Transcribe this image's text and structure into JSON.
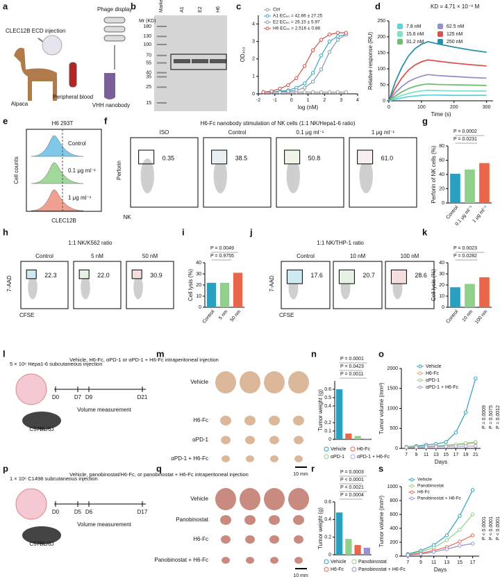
{
  "panels": {
    "a": {
      "letter": "a",
      "injection": "CLEC12B ECD injection",
      "phage": "Phage display",
      "alpaca": "Alpaca",
      "blood": "Peripheral blood",
      "nanobody": "VHH nanobody"
    },
    "b": {
      "letter": "b",
      "axis_title": "Mr (KD)",
      "lanes": [
        "Marker",
        "A1",
        "E2",
        "H6"
      ],
      "markers": [
        180,
        130,
        100,
        70,
        55,
        40,
        35,
        25,
        15
      ]
    },
    "c": {
      "letter": "c",
      "type": "line",
      "xlabel": "log (nM)",
      "ylabel": "OD₄₅₀",
      "x": [
        -1.7,
        -1.2,
        -0.7,
        -0.2,
        0.3,
        0.8,
        1.3,
        1.8,
        2.3,
        2.8,
        3.3
      ],
      "xlim": [
        -2,
        4
      ],
      "xticks": [
        -2,
        -1,
        0,
        1,
        2,
        3,
        4
      ],
      "ylim": [
        0,
        4.5
      ],
      "yticks": [
        0,
        1,
        2,
        3,
        4
      ],
      "series": [
        {
          "name": "Ctrl",
          "color": "#9a9a9a",
          "values": [
            0.1,
            0.1,
            0.1,
            0.1,
            0.1,
            0.1,
            0.1,
            0.1,
            0.1,
            0.1,
            0.1
          ]
        },
        {
          "name": "A1 EC₅₀ = 42.66 ± 27.25",
          "color": "#3ba3c4",
          "values": [
            0.1,
            0.1,
            0.15,
            0.2,
            0.35,
            0.6,
            1.2,
            2.2,
            3.0,
            3.3,
            3.4
          ]
        },
        {
          "name": "E2 EC₅₀ = 26.15 ± 5.97",
          "color": "#7f98ad",
          "values": [
            0.1,
            0.1,
            0.1,
            0.15,
            0.2,
            0.35,
            0.7,
            1.4,
            2.4,
            3.1,
            3.4
          ]
        },
        {
          "name": "H6 EC₅₀ = 2.516 ± 0.88",
          "color": "#c8524a",
          "values": [
            0.1,
            0.15,
            0.3,
            0.5,
            0.9,
            1.6,
            2.5,
            3.1,
            3.4,
            3.5,
            3.5
          ]
        }
      ]
    },
    "d": {
      "letter": "d",
      "type": "line",
      "annotation": "KD = 4.71 × 10⁻⁸ M",
      "xlabel": "Time (s)",
      "ylabel": "Relative response (RU)",
      "x": [
        0,
        20,
        40,
        60,
        80,
        100,
        120,
        150,
        200,
        250,
        300
      ],
      "xlim": [
        0,
        320
      ],
      "xticks": [
        0,
        100,
        200,
        300
      ],
      "ylim": [
        0,
        250
      ],
      "yticks": [
        0,
        50,
        100,
        150,
        200,
        250
      ],
      "series": [
        {
          "name": "7.8 nM",
          "color": "#5fd3e0",
          "values": [
            0,
            5,
            9,
            13,
            15,
            17,
            18,
            18,
            17,
            17,
            17
          ]
        },
        {
          "name": "62.5 nM",
          "color": "#9a8fc8",
          "values": [
            0,
            25,
            45,
            60,
            70,
            77,
            82,
            79,
            76,
            73,
            71
          ]
        },
        {
          "name": "15.6 nM",
          "color": "#7fe0c8",
          "values": [
            0,
            9,
            17,
            23,
            28,
            31,
            33,
            32,
            31,
            31,
            30
          ]
        },
        {
          "name": "125 nM",
          "color": "#d9534a",
          "values": [
            0,
            40,
            72,
            96,
            112,
            122,
            128,
            124,
            118,
            113,
            109
          ]
        },
        {
          "name": "31.2 nM",
          "color": "#6cbf6c",
          "values": [
            0,
            15,
            28,
            38,
            45,
            50,
            53,
            51,
            50,
            49,
            48
          ]
        },
        {
          "name": "250 nM",
          "color": "#2a8fa8",
          "values": [
            0,
            60,
            105,
            140,
            163,
            177,
            185,
            178,
            168,
            159,
            152
          ]
        }
      ]
    },
    "e": {
      "letter": "e",
      "title": "H6 293T",
      "rows": [
        "Control",
        "0.1 μg ml⁻¹",
        "1 μg ml⁻¹"
      ],
      "xlabel": "CLEC12B",
      "ylabel": "Cell counts"
    },
    "f": {
      "letter": "f",
      "title": "H6-Fc nanobody stimulation of NK cells (1:1 NK/Hepa1-6 ratio)",
      "conditions": [
        "ISO",
        "Control",
        "0.1 μg ml⁻¹",
        "1 μg ml⁻¹"
      ],
      "gates": [
        "0.35",
        "38.5",
        "50.8",
        "61.0"
      ],
      "ylabel": "Perforin",
      "xlabel": "NK"
    },
    "g": {
      "letter": "g",
      "type": "bar",
      "ylabel": "Perforin of NK cells (%)",
      "categories": [
        "Control",
        "0.1 μg ml⁻¹",
        "1 μg ml⁻¹"
      ],
      "values": [
        41,
        47,
        56
      ],
      "colors": [
        "#2aa0c0",
        "#8fd08a",
        "#e8674a"
      ],
      "ylim": [
        0,
        80
      ],
      "yticks": [
        0,
        20,
        40,
        60,
        80
      ],
      "p_values": [
        "P = 0.0002",
        "P = 0.0231"
      ]
    },
    "h": {
      "letter": "h",
      "title": "1:1 NK/K562 ratio",
      "conditions": [
        "Control",
        "5 nM",
        "50 nM"
      ],
      "gates": [
        "22.3",
        "22.0",
        "30.9"
      ],
      "ylabel": "7-AAD",
      "xlabel": "CFSE"
    },
    "i": {
      "letter": "i",
      "type": "bar",
      "ylabel": "Cell lysis (%)",
      "categories": [
        "Control",
        "5 nm",
        "50 nm"
      ],
      "values": [
        22,
        22,
        31
      ],
      "colors": [
        "#2aa0c0",
        "#8fd08a",
        "#e8674a"
      ],
      "ylim": [
        0,
        40
      ],
      "yticks": [
        0,
        10,
        20,
        30,
        40
      ],
      "p_values": [
        "P = 0.0049",
        "P = 0.9755"
      ]
    },
    "j": {
      "letter": "j",
      "title": "1:1 NK/THP-1 ratio",
      "conditions": [
        "Control",
        "10 nM",
        "100 nM"
      ],
      "gates": [
        "17.6",
        "20.7",
        "28.6"
      ],
      "ylabel": "7-AAD",
      "xlabel": "CFSE"
    },
    "k": {
      "letter": "k",
      "type": "bar",
      "ylabel": "Cell lysis (%)",
      "categories": [
        "Control",
        "10 nm",
        "100 nm"
      ],
      "values": [
        18,
        21,
        27
      ],
      "colors": [
        "#2aa0c0",
        "#8fd08a",
        "#e8674a"
      ],
      "ylim": [
        0,
        40
      ],
      "yticks": [
        0,
        10,
        20,
        30,
        40
      ],
      "p_values": [
        "P = 0.0023",
        "P = 0.0282"
      ]
    },
    "l": {
      "letter": "l",
      "injection": "5 × 10⁶ Hepa1-6 subcutaneous injection",
      "treatment": "Vehicle, H6-Fc, αPD-1 or αPD-1 + H6-Fc intraperitoneal injection",
      "days": [
        "D0",
        "D7",
        "D9",
        "D21"
      ],
      "measure": "Volume measurement",
      "strain": "C57BL/6J"
    },
    "m": {
      "letter": "m",
      "rows": [
        "Vehicle",
        "H6-Fc",
        "αPD-1",
        "αPD-1 + H6-Fc"
      ],
      "scale": "10 mm"
    },
    "n": {
      "letter": "n",
      "type": "bar",
      "ylabel": "Tumor weight (g)",
      "categories": [
        "Vehicle",
        "H6-Fc",
        "αPD-1",
        "αPD-1 + H6-Fc"
      ],
      "values": [
        0.6,
        0.07,
        0.04,
        0.01
      ],
      "colors": [
        "#2aa0c0",
        "#e8674a",
        "#8fd08a",
        "#b9a9d9"
      ],
      "ylim": [
        0,
        0.7
      ],
      "yticks": [
        0,
        0.1,
        0.2,
        0.4,
        0.5,
        0.6
      ],
      "p_values": [
        "P = 0.0001",
        "P = 0.0423",
        "P = 0.0011"
      ]
    },
    "o": {
      "letter": "o",
      "type": "line",
      "xlabel": "Days",
      "ylabel": "Tumor volume (mm³)",
      "x": [
        7,
        9,
        11,
        13,
        15,
        17,
        19,
        21
      ],
      "xlim": [
        6,
        22
      ],
      "xticks": [
        7,
        9,
        11,
        13,
        15,
        17,
        19,
        21
      ],
      "ylim": [
        0,
        2000
      ],
      "yticks": [
        0,
        500,
        1000,
        1500,
        2000
      ],
      "series": [
        {
          "name": "Vehicle",
          "color": "#2aa0c0",
          "values": [
            40,
            60,
            90,
            110,
            160,
            400,
            900,
            1750
          ]
        },
        {
          "name": "H6-Fc",
          "color": "#d9a070",
          "values": [
            30,
            40,
            50,
            60,
            70,
            90,
            110,
            140
          ]
        },
        {
          "name": "αPD-1",
          "color": "#8fc98a",
          "values": [
            35,
            45,
            55,
            65,
            80,
            100,
            130,
            160
          ]
        },
        {
          "name": "αPD-1 + H6-Fc",
          "color": "#a99ad0",
          "values": [
            25,
            30,
            35,
            40,
            45,
            50,
            55,
            60
          ]
        }
      ],
      "p_values": [
        "P = 0.0009",
        "P = 0.5075",
        "P = 0.0012"
      ]
    },
    "p": {
      "letter": "p",
      "injection": "1 × 10⁶ C1498 subcutaneous injection",
      "treatment": "Vehicle, panobinostat/H6-Fc, or panobinostat + H6-Fc intraperitoneal injection",
      "days": [
        "D0",
        "D5",
        "D6",
        "D17"
      ],
      "measure": "Volume measurement",
      "strain": "C57BL/6J"
    },
    "q": {
      "letter": "q",
      "rows": [
        "Vehicle",
        "Panobinostat",
        "H6-Fc",
        "Panobinostat + H6-Fc"
      ],
      "scale": "10 mm"
    },
    "r": {
      "letter": "r",
      "type": "bar",
      "ylabel": "Tumor weight (g)",
      "categories": [
        "Vehicle",
        "Panobinostat",
        "H6-Fc",
        "Panobinostat + H6-Fc"
      ],
      "values": [
        0.48,
        0.18,
        0.11,
        0.08
      ],
      "colors": [
        "#2aa0c0",
        "#8fd08a",
        "#e8674a",
        "#9b8fd0"
      ],
      "ylim": [
        0,
        0.6
      ],
      "yticks": [
        0,
        0.2,
        0.4,
        0.6
      ],
      "p_values": [
        "P = 0.0003",
        "P < 0.0001",
        "P = 0.0021",
        "P = 0.0004"
      ]
    },
    "s": {
      "letter": "s",
      "type": "line",
      "xlabel": "Days",
      "ylabel": "Tumor volume (mm³)",
      "x": [
        7,
        9,
        11,
        13,
        15,
        17
      ],
      "xlim": [
        6,
        18
      ],
      "xticks": [
        7,
        9,
        11,
        13,
        15,
        17
      ],
      "ylim": [
        0,
        1000
      ],
      "yticks": [
        0,
        200,
        400,
        600,
        800,
        1000
      ],
      "series": [
        {
          "name": "Vehicle",
          "color": "#2aa0c0",
          "values": [
            30,
            80,
            160,
            300,
            580,
            950
          ]
        },
        {
          "name": "Panobinostat",
          "color": "#8fd08a",
          "values": [
            25,
            60,
            120,
            230,
            380,
            600
          ]
        },
        {
          "name": "H6-Fc",
          "color": "#e8674a",
          "values": [
            20,
            40,
            80,
            130,
            210,
            300
          ]
        },
        {
          "name": "Panobinostat + H6-Fc",
          "color": "#9b8fd0",
          "values": [
            15,
            30,
            60,
            100,
            150,
            180
          ]
        }
      ],
      "p_values": [
        "P < 0.0001",
        "P < 0.0001",
        "P < 0.0001"
      ]
    }
  }
}
